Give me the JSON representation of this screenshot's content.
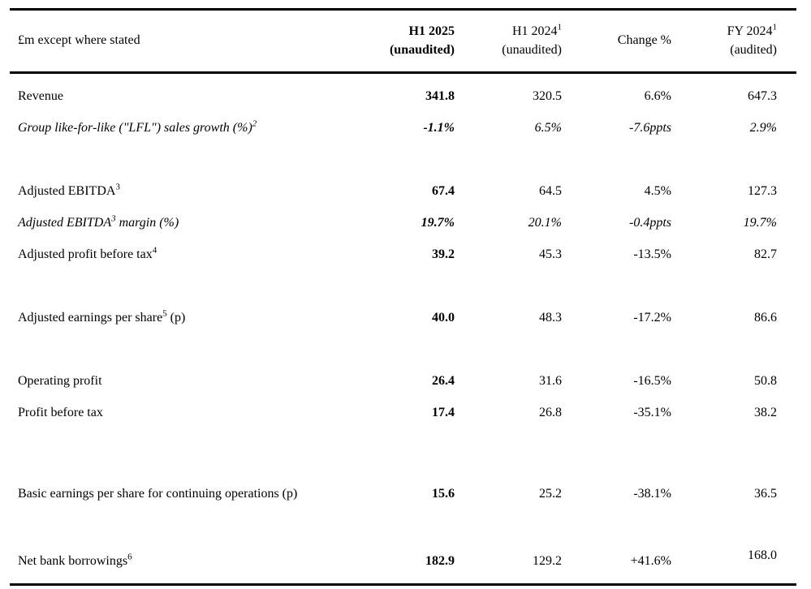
{
  "page": {
    "background_color": "#ffffff",
    "text_color": "#000000",
    "rule_color": "#000000"
  },
  "table": {
    "unit_label": "£m except where stated",
    "columns": [
      {
        "line1": "H1 2025",
        "sup": "",
        "line2": "(unaudited)",
        "bold": true
      },
      {
        "line1": "H1 2024",
        "sup": "1",
        "line2": "(unaudited)",
        "bold": false
      },
      {
        "line1": "Change %",
        "sup": "",
        "line2": "",
        "bold": false
      },
      {
        "line1": "FY 2024",
        "sup": "1",
        "line2": "(audited)",
        "bold": false
      }
    ],
    "rows": [
      {
        "label_pre": "Revenue",
        "label_sup": "",
        "label_post": "",
        "italic": false,
        "values": [
          "341.8",
          "320.5",
          "6.6%",
          "647.3"
        ],
        "gap_after": 0,
        "raised_value_index": null
      },
      {
        "label_pre": "Group like-for-like (\"LFL\") sales growth (%)",
        "label_sup": "2",
        "label_post": "",
        "italic": true,
        "values": [
          "-1.1%",
          "6.5%",
          "-7.6ppts",
          "2.9%"
        ],
        "gap_after": 39,
        "raised_value_index": null
      },
      {
        "label_pre": "Adjusted EBITDA",
        "label_sup": "3",
        "label_post": "",
        "italic": false,
        "values": [
          "67.4",
          "64.5",
          "4.5%",
          "127.3"
        ],
        "gap_after": 0,
        "raised_value_index": null
      },
      {
        "label_pre": "Adjusted EBITDA",
        "label_sup": "3",
        "label_post": " margin (%)",
        "italic": true,
        "values": [
          "19.7%",
          "20.1%",
          "-0.4ppts",
          "19.7%"
        ],
        "gap_after": 0,
        "raised_value_index": null
      },
      {
        "label_pre": "Adjusted profit before tax",
        "label_sup": "4",
        "label_post": "",
        "italic": false,
        "values": [
          "39.2",
          "45.3",
          "-13.5%",
          "82.7"
        ],
        "gap_after": 39,
        "raised_value_index": null
      },
      {
        "label_pre": "Adjusted earnings per share",
        "label_sup": "5",
        "label_post": " (p)",
        "italic": false,
        "values": [
          "40.0",
          "48.3",
          "-17.2%",
          "86.6"
        ],
        "gap_after": 39,
        "raised_value_index": null
      },
      {
        "label_pre": "Operating profit",
        "label_sup": "",
        "label_post": "",
        "italic": false,
        "values": [
          "26.4",
          "31.6",
          "-16.5%",
          "50.8"
        ],
        "gap_after": 0,
        "raised_value_index": null
      },
      {
        "label_pre": "Profit before tax",
        "label_sup": "",
        "label_post": "",
        "italic": false,
        "values": [
          "17.4",
          "26.8",
          "-35.1%",
          "38.2"
        ],
        "gap_after": 61,
        "raised_value_index": null
      },
      {
        "label_pre": "Basic earnings per share for continuing operations (p)",
        "label_sup": "",
        "label_post": "",
        "italic": false,
        "values": [
          "15.6",
          "25.2",
          "-38.1%",
          "36.5"
        ],
        "gap_after": 44,
        "raised_value_index": null
      },
      {
        "label_pre": "Net bank borrowings",
        "label_sup": "6",
        "label_post": "",
        "italic": false,
        "values": [
          "182.9",
          "129.2",
          "+41.6%",
          "168.0"
        ],
        "gap_after": 8,
        "raised_value_index": 3
      }
    ]
  }
}
